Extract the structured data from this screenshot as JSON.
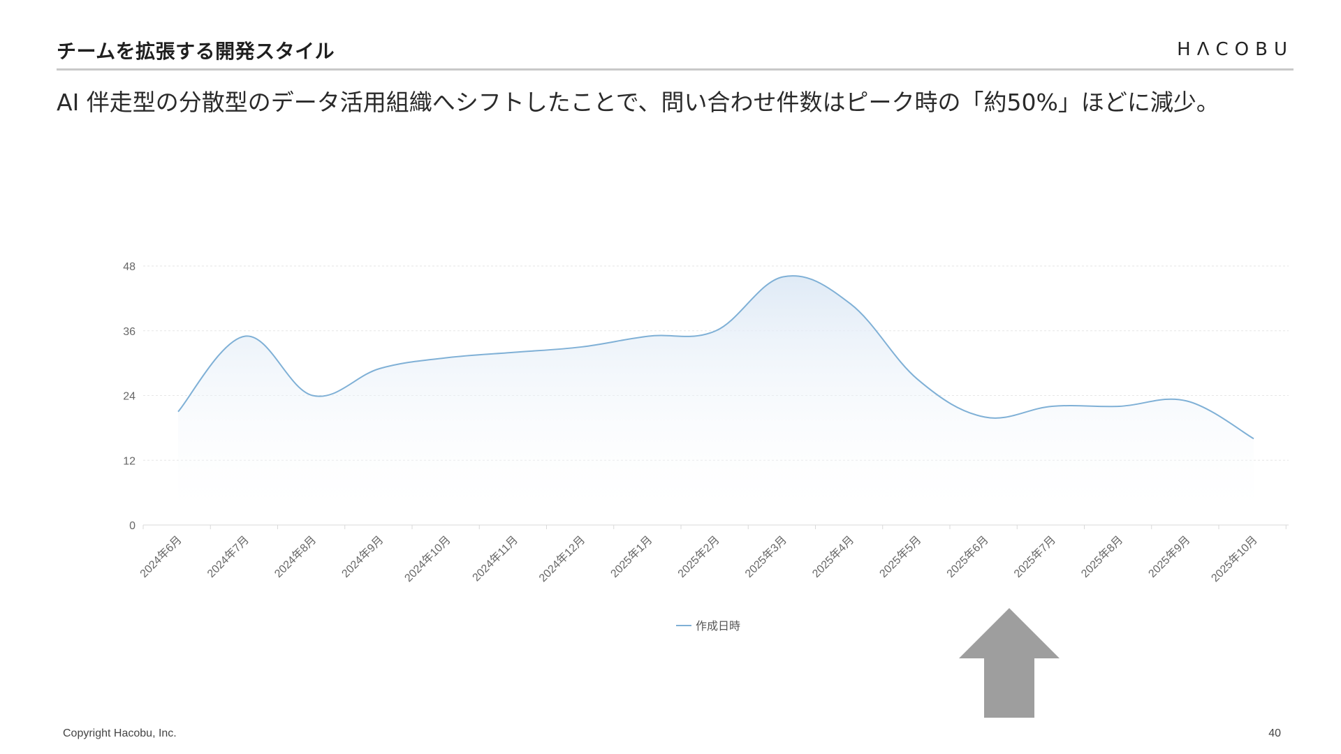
{
  "slide": {
    "title": "チームを拡張する開発スタイル",
    "logo": "HΛCOBU",
    "headline": "AI 伴走型の分散型のデータ活用組織へシフトしたことで、問い合わせ件数はピーク時の「約50%」ほどに減少。"
  },
  "footer": {
    "copyright": "Copyright Hacobu, Inc.",
    "page": "40"
  },
  "colors": {
    "line": "#7fb0d6",
    "area_top": "#dce8f5",
    "grid": "#e6e6e6",
    "arrow": "#9e9e9e"
  },
  "chart_data": {
    "type": "area",
    "categories": [
      "2024年6月",
      "2024年7月",
      "2024年8月",
      "2024年9月",
      "2024年10月",
      "2024年11月",
      "2024年12月",
      "2025年1月",
      "2025年2月",
      "2025年3月",
      "2025年4月",
      "2025年5月",
      "2025年6月",
      "2025年7月",
      "2025年8月",
      "2025年9月",
      "2025年10月"
    ],
    "series": [
      {
        "name": "作成日時",
        "values": [
          21,
          35,
          24,
          29,
          31,
          32,
          33,
          35,
          36,
          46,
          41,
          27,
          20,
          22,
          22,
          23,
          16
        ]
      }
    ],
    "ylim": [
      0,
      48
    ],
    "yticks": [
      "0",
      "12",
      "24",
      "36",
      "48"
    ],
    "grid": true,
    "legend": "bottom-center"
  },
  "annotation": {
    "shape": "up-arrow",
    "points_to": "2025年6月"
  }
}
